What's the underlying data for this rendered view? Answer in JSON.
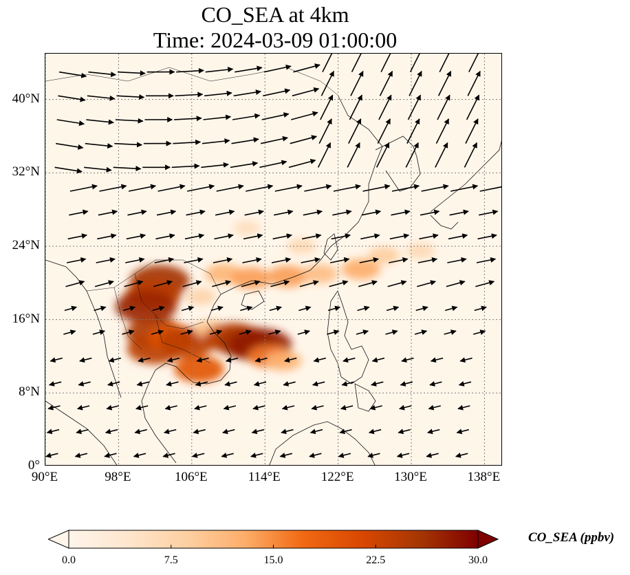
{
  "title_line1": "CO_SEA at 4km",
  "title_line2": "Time: 2024-03-09 01:00:00",
  "map": {
    "lon_range": [
      90,
      140
    ],
    "lat_range": [
      0,
      45
    ],
    "gridlines": true,
    "lat_ticks": [
      {
        "value": 0,
        "label": "0°"
      },
      {
        "value": 8,
        "label": "8°N"
      },
      {
        "value": 16,
        "label": "16°N"
      },
      {
        "value": 24,
        "label": "24°N"
      },
      {
        "value": 32,
        "label": "32°N"
      },
      {
        "value": 40,
        "label": "40°N"
      }
    ],
    "lon_ticks": [
      {
        "value": 90,
        "label": "90°E"
      },
      {
        "value": 98,
        "label": "98°E"
      },
      {
        "value": 106,
        "label": "106°E"
      },
      {
        "value": 114,
        "label": "114°E"
      },
      {
        "value": 122,
        "label": "122°E"
      },
      {
        "value": 130,
        "label": "130°E"
      },
      {
        "value": 138,
        "label": "138°E"
      }
    ],
    "colors": {
      "background": "#fff6ea",
      "coast": "#111111",
      "grid": "#7a7a7a",
      "arrow": "#000000"
    }
  },
  "colorbar": {
    "label": "CO_SEA (ppbv)",
    "min": 0,
    "max": 30,
    "extend": "both",
    "ticks": [
      {
        "value": 0,
        "label": "0.0"
      },
      {
        "value": 7.5,
        "label": "7.5"
      },
      {
        "value": 15,
        "label": "15.0"
      },
      {
        "value": 22.5,
        "label": "22.5"
      },
      {
        "value": 30,
        "label": "30.0"
      }
    ],
    "colors": [
      "#fff5eb",
      "#fee6ce",
      "#fdd0a2",
      "#fdae6b",
      "#f16913",
      "#d94801",
      "#a63603",
      "#7f0000"
    ]
  },
  "plumes": [
    {
      "lon": 102.5,
      "lat": 20.2,
      "value": 26
    },
    {
      "lon": 101.8,
      "lat": 18.7,
      "value": 24
    },
    {
      "lon": 101.0,
      "lat": 17.4,
      "value": 27
    },
    {
      "lon": 102.0,
      "lat": 14.5,
      "value": 25
    },
    {
      "lon": 102.0,
      "lat": 12.8,
      "value": 24
    },
    {
      "lon": 104.0,
      "lat": 14.0,
      "value": 20
    },
    {
      "lon": 105.5,
      "lat": 13.5,
      "value": 24
    },
    {
      "lon": 106.8,
      "lat": 10.6,
      "value": 20
    },
    {
      "lon": 108.0,
      "lat": 15.0,
      "value": 10
    },
    {
      "lon": 110.5,
      "lat": 14.0,
      "value": 24
    },
    {
      "lon": 112.0,
      "lat": 13.5,
      "value": 26
    },
    {
      "lon": 113.5,
      "lat": 13.2,
      "value": 28
    },
    {
      "lon": 114.5,
      "lat": 12.0,
      "value": 16
    },
    {
      "lon": 116.0,
      "lat": 11.5,
      "value": 12
    },
    {
      "lon": 109.5,
      "lat": 21.0,
      "value": 12
    },
    {
      "lon": 112.5,
      "lat": 20.5,
      "value": 14
    },
    {
      "lon": 116.5,
      "lat": 20.7,
      "value": 14
    },
    {
      "lon": 120.0,
      "lat": 21.0,
      "value": 11
    },
    {
      "lon": 124.5,
      "lat": 21.5,
      "value": 13
    },
    {
      "lon": 127.0,
      "lat": 23.0,
      "value": 9
    },
    {
      "lon": 131.0,
      "lat": 23.5,
      "value": 7
    },
    {
      "lon": 112.0,
      "lat": 26.0,
      "value": 6
    },
    {
      "lon": 118.0,
      "lat": 24.0,
      "value": 7
    },
    {
      "lon": 107.0,
      "lat": 18.5,
      "value": 8
    }
  ]
}
